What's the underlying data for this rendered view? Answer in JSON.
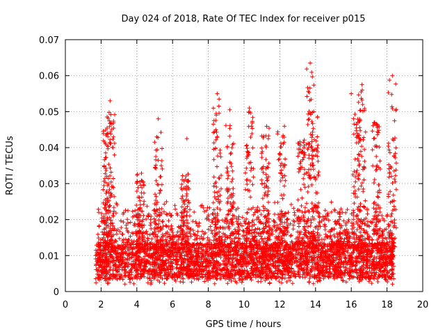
{
  "chart_data": {
    "type": "scatter",
    "title": "Day 024 of 2018, Rate Of TEC Index for receiver p015",
    "xlabel": "GPS time / hours",
    "ylabel": "ROTI / TECUs",
    "xlim": [
      0,
      20
    ],
    "ylim": [
      0,
      0.07
    ],
    "x_ticks": [
      0,
      2,
      4,
      6,
      8,
      10,
      12,
      14,
      16,
      18,
      20
    ],
    "y_ticks": [
      0,
      0.01,
      0.02,
      0.03,
      0.04,
      0.05,
      0.06,
      0.07
    ],
    "x_tick_labels": [
      "0",
      "2",
      "4",
      "6",
      "8",
      "10",
      "12",
      "14",
      "16",
      "18",
      "20"
    ],
    "y_tick_labels": [
      "0",
      "0.01",
      "0.02",
      "0.03",
      "0.04",
      "0.05",
      "0.06",
      "0.07"
    ],
    "grid": true,
    "marker": "+",
    "color": "#ff0000",
    "data_range_hours": [
      1.7,
      18.4
    ],
    "notable_points": [
      {
        "x": 2.5,
        "y": 0.053
      },
      {
        "x": 5.2,
        "y": 0.048
      },
      {
        "x": 6.8,
        "y": 0.0425
      },
      {
        "x": 8.5,
        "y": 0.055
      },
      {
        "x": 9.2,
        "y": 0.0505
      },
      {
        "x": 10.3,
        "y": 0.051
      },
      {
        "x": 13.7,
        "y": 0.0635
      },
      {
        "x": 13.9,
        "y": 0.05
      },
      {
        "x": 16.0,
        "y": 0.055
      },
      {
        "x": 16.6,
        "y": 0.0575
      },
      {
        "x": 17.3,
        "y": 0.047
      },
      {
        "x": 18.3,
        "y": 0.06
      }
    ],
    "bursts": [
      {
        "x": 2.3,
        "height": 0.045
      },
      {
        "x": 2.55,
        "height": 0.05
      },
      {
        "x": 4.2,
        "height": 0.033
      },
      {
        "x": 5.2,
        "height": 0.045
      },
      {
        "x": 6.7,
        "height": 0.034
      },
      {
        "x": 8.5,
        "height": 0.054
      },
      {
        "x": 9.2,
        "height": 0.048
      },
      {
        "x": 10.3,
        "height": 0.05
      },
      {
        "x": 11.2,
        "height": 0.046
      },
      {
        "x": 12.1,
        "height": 0.046
      },
      {
        "x": 13.2,
        "height": 0.043
      },
      {
        "x": 13.7,
        "height": 0.062
      },
      {
        "x": 14.0,
        "height": 0.049
      },
      {
        "x": 16.3,
        "height": 0.05
      },
      {
        "x": 16.6,
        "height": 0.057
      },
      {
        "x": 17.4,
        "height": 0.047
      },
      {
        "x": 18.3,
        "height": 0.059
      }
    ]
  }
}
